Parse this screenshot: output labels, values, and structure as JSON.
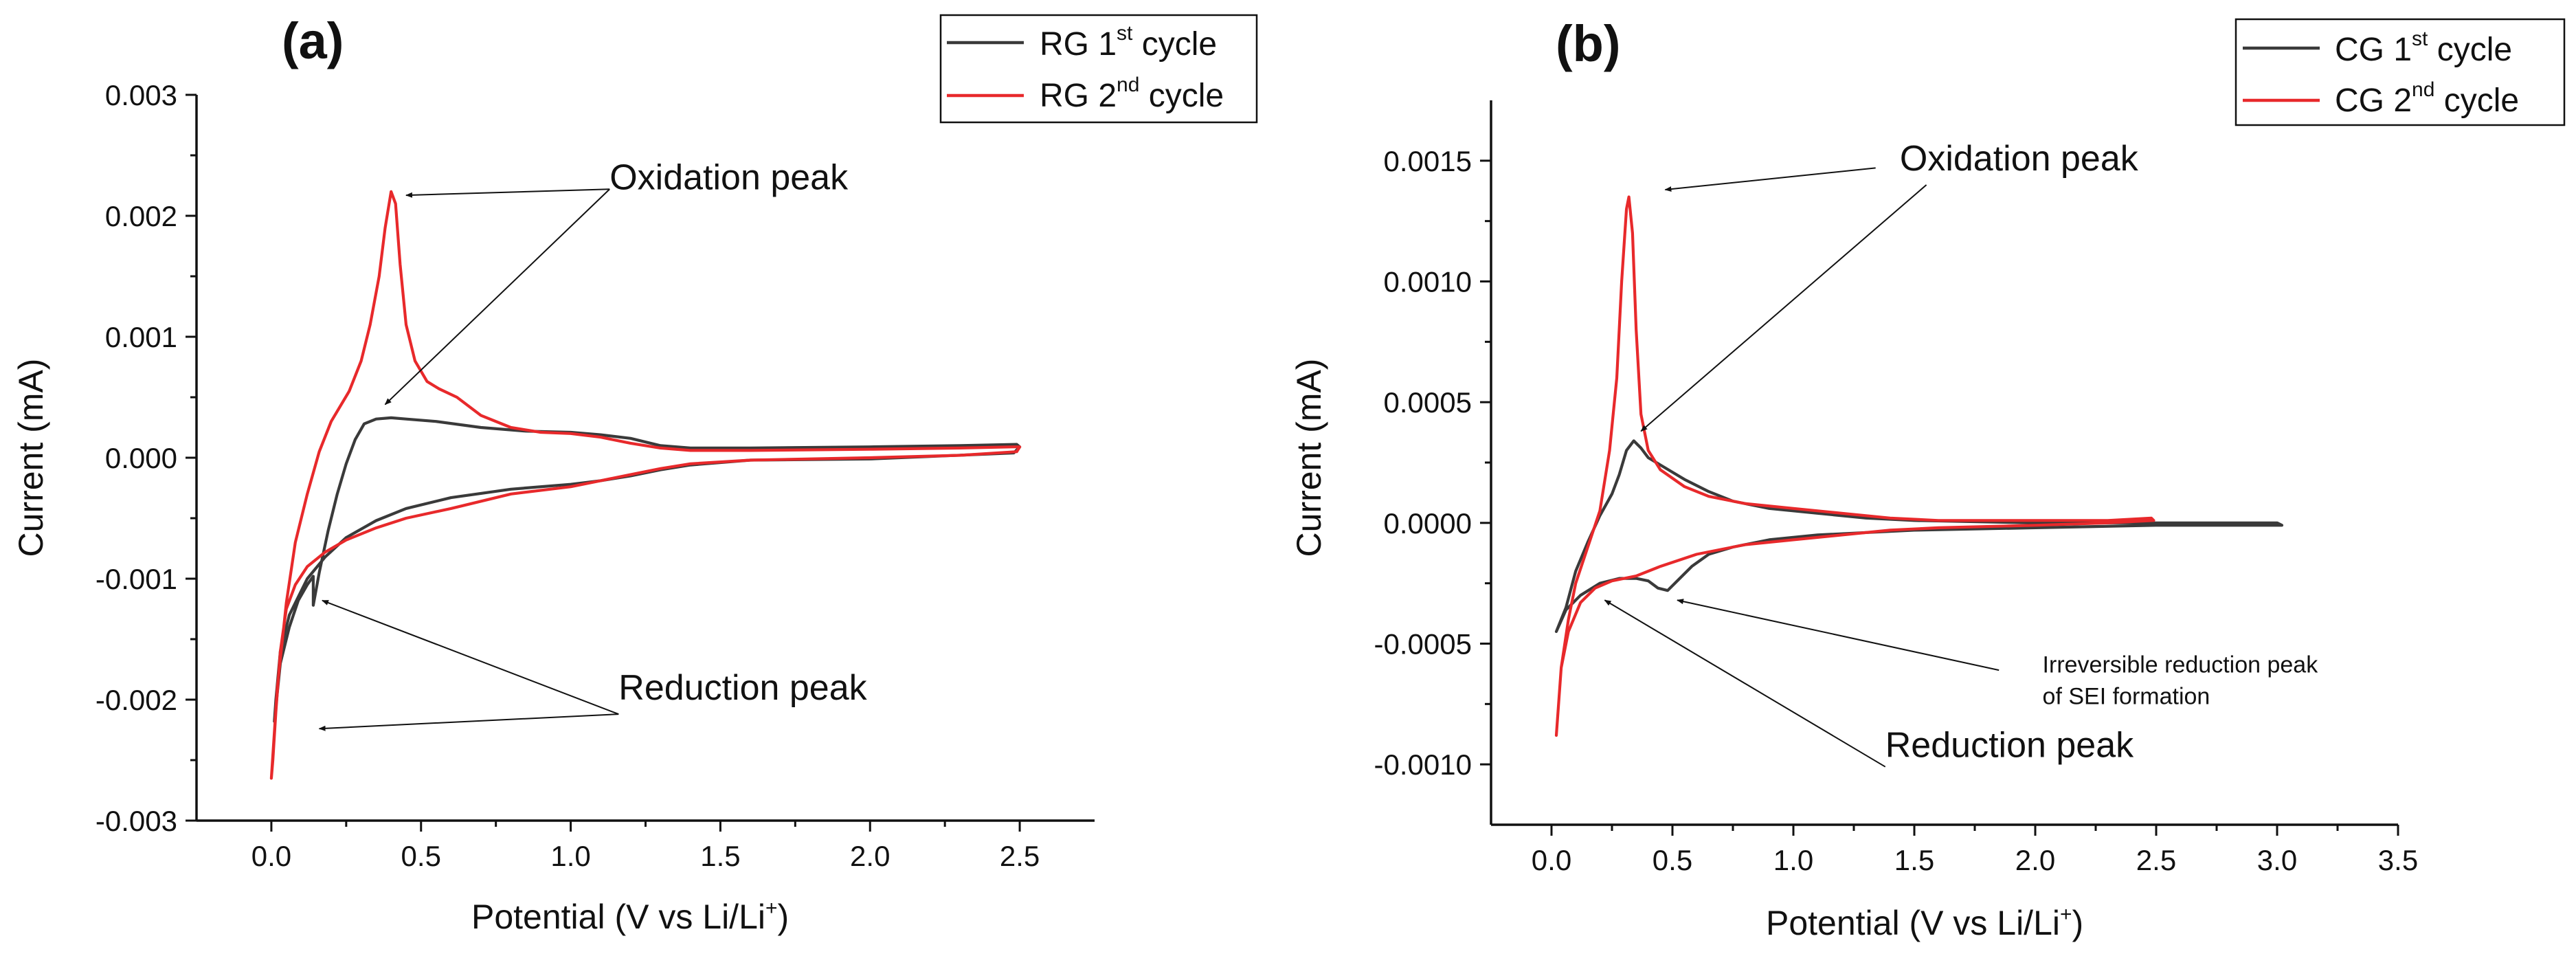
{
  "chart_data": [
    {
      "type": "line",
      "panel_label": "(a)",
      "xlabel": "Potential (V vs Li/Li",
      "xlabel_sup": "+",
      "xlabel_end": ")",
      "ylabel": "Current (mA)",
      "xlim": [
        -0.25,
        2.75
      ],
      "ylim": [
        -0.003,
        0.003
      ],
      "x_ticks": [
        0.0,
        0.5,
        1.0,
        1.5,
        2.0,
        2.5
      ],
      "x_tick_labels": [
        "0.0",
        "0.5",
        "1.0",
        "1.5",
        "2.0",
        "2.5"
      ],
      "y_ticks": [
        -0.003,
        -0.002,
        -0.001,
        0.0,
        0.001,
        0.002,
        0.003
      ],
      "y_tick_labels": [
        "-0.003",
        "-0.002",
        "-0.001",
        "0.000",
        "0.001",
        "0.002",
        "0.003"
      ],
      "legend_position": "top-right",
      "series": [
        {
          "name": "RG 1st cycle",
          "legend_base": "RG 1",
          "legend_sup": "st",
          "legend_end": " cycle",
          "color": "#3a3a3a",
          "points": [
            [
              0.14,
              -0.00122
            ],
            [
              0.16,
              -0.00095
            ],
            [
              0.19,
              -0.0006
            ],
            [
              0.22,
              -0.0003
            ],
            [
              0.25,
              -5e-05
            ],
            [
              0.28,
              0.00015
            ],
            [
              0.31,
              0.00028
            ],
            [
              0.35,
              0.00032
            ],
            [
              0.4,
              0.00033
            ],
            [
              0.45,
              0.00032
            ],
            [
              0.55,
              0.0003
            ],
            [
              0.7,
              0.00025
            ],
            [
              0.85,
              0.00022
            ],
            [
              1.0,
              0.00021
            ],
            [
              1.1,
              0.00019
            ],
            [
              1.2,
              0.00016
            ],
            [
              1.3,
              0.0001
            ],
            [
              1.4,
              8e-05
            ],
            [
              1.6,
              8e-05
            ],
            [
              2.0,
              9e-05
            ],
            [
              2.3,
              0.0001
            ],
            [
              2.49,
              0.00011
            ],
            [
              2.5,
              9e-05
            ],
            [
              2.48,
              4e-05
            ],
            [
              2.2,
              1e-05
            ],
            [
              2.0,
              -1e-05
            ],
            [
              1.6,
              -2e-05
            ],
            [
              1.4,
              -6e-05
            ],
            [
              1.3,
              -0.0001
            ],
            [
              1.2,
              -0.00015
            ],
            [
              1.1,
              -0.00019
            ],
            [
              1.0,
              -0.00022
            ],
            [
              0.8,
              -0.00026
            ],
            [
              0.6,
              -0.00033
            ],
            [
              0.45,
              -0.00042
            ],
            [
              0.35,
              -0.00052
            ],
            [
              0.25,
              -0.00066
            ],
            [
              0.18,
              -0.00082
            ],
            [
              0.12,
              -0.001
            ],
            [
              0.06,
              -0.0013
            ],
            [
              0.03,
              -0.0016
            ],
            [
              0.015,
              -0.002
            ],
            [
              0.01,
              -0.00218
            ],
            [
              0.03,
              -0.0017
            ],
            [
              0.06,
              -0.0014
            ],
            [
              0.09,
              -0.00118
            ],
            [
              0.12,
              -0.00105
            ],
            [
              0.14,
              -0.00098
            ]
          ]
        },
        {
          "name": "RG 2nd cycle",
          "legend_base": "RG 2",
          "legend_sup": "nd",
          "legend_end": " cycle",
          "color": "#e8292b",
          "points": [
            [
              0.0,
              -0.00265
            ],
            [
              0.02,
              -0.0019
            ],
            [
              0.05,
              -0.0012
            ],
            [
              0.08,
              -0.0007
            ],
            [
              0.12,
              -0.0003
            ],
            [
              0.16,
              5e-05
            ],
            [
              0.2,
              0.0003
            ],
            [
              0.26,
              0.00055
            ],
            [
              0.3,
              0.0008
            ],
            [
              0.33,
              0.0011
            ],
            [
              0.36,
              0.0015
            ],
            [
              0.38,
              0.0019
            ],
            [
              0.4,
              0.0022
            ],
            [
              0.415,
              0.0021
            ],
            [
              0.43,
              0.0016
            ],
            [
              0.45,
              0.0011
            ],
            [
              0.48,
              0.0008
            ],
            [
              0.52,
              0.00063
            ],
            [
              0.56,
              0.00057
            ],
            [
              0.62,
              0.0005
            ],
            [
              0.7,
              0.00035
            ],
            [
              0.8,
              0.00025
            ],
            [
              0.9,
              0.00021
            ],
            [
              1.0,
              0.0002
            ],
            [
              1.1,
              0.00017
            ],
            [
              1.2,
              0.00012
            ],
            [
              1.3,
              8e-05
            ],
            [
              1.4,
              6e-05
            ],
            [
              1.6,
              6e-05
            ],
            [
              2.0,
              7e-05
            ],
            [
              2.3,
              8e-05
            ],
            [
              2.48,
              9e-05
            ],
            [
              2.5,
              9e-05
            ],
            [
              2.49,
              5e-05
            ],
            [
              2.3,
              2e-05
            ],
            [
              2.0,
              0.0
            ],
            [
              1.6,
              -2e-05
            ],
            [
              1.4,
              -5e-05
            ],
            [
              1.3,
              -9e-05
            ],
            [
              1.2,
              -0.00014
            ],
            [
              1.1,
              -0.00019
            ],
            [
              1.0,
              -0.00024
            ],
            [
              0.8,
              -0.0003
            ],
            [
              0.6,
              -0.00042
            ],
            [
              0.45,
              -0.0005
            ],
            [
              0.35,
              -0.00058
            ],
            [
              0.25,
              -0.00068
            ],
            [
              0.18,
              -0.00078
            ],
            [
              0.12,
              -0.0009
            ],
            [
              0.08,
              -0.00105
            ],
            [
              0.05,
              -0.00125
            ],
            [
              0.03,
              -0.0016
            ],
            [
              0.015,
              -0.0021
            ],
            [
              0.005,
              -0.0025
            ],
            [
              0.0,
              -0.00265
            ]
          ]
        }
      ],
      "annotations": [
        {
          "label": "Oxidation peak",
          "size": "big",
          "text_at": [
            1.13,
            0.00222
          ],
          "arrows": [
            {
              "from": [
                1.13,
                0.00222
              ],
              "to": [
                0.45,
                0.00217
              ]
            },
            {
              "from": [
                1.13,
                0.00222
              ],
              "to": [
                0.38,
                0.00044
              ]
            }
          ]
        },
        {
          "label": "Reduction peak",
          "size": "big",
          "text_at": [
            1.16,
            -0.002
          ],
          "arrows": [
            {
              "from": [
                1.16,
                -0.00212
              ],
              "to": [
                0.17,
                -0.00118
              ]
            },
            {
              "from": [
                1.16,
                -0.00212
              ],
              "to": [
                0.16,
                -0.00224
              ]
            }
          ]
        }
      ]
    },
    {
      "type": "line",
      "panel_label": "(b)",
      "xlabel": "Potential (V vs Li/Li",
      "xlabel_sup": "+",
      "xlabel_end": ")",
      "ylabel": "Current (mA)",
      "xlim": [
        -0.25,
        3.5
      ],
      "ylim": [
        -0.00125,
        0.00175
      ],
      "x_ticks": [
        0.0,
        0.5,
        1.0,
        1.5,
        2.0,
        2.5,
        3.0,
        3.5
      ],
      "x_tick_labels": [
        "0.0",
        "0.5",
        "1.0",
        "1.5",
        "2.0",
        "2.5",
        "3.0",
        "3.5"
      ],
      "y_ticks": [
        -0.001,
        -0.0005,
        0.0,
        0.0005,
        0.001,
        0.0015
      ],
      "y_tick_labels": [
        "-0.0010",
        "-0.0005",
        "0.0000",
        "0.0005",
        "0.0010",
        "0.0015"
      ],
      "legend_position": "top-right",
      "series": [
        {
          "name": "CG 1st cycle",
          "legend_base": "CG 1",
          "legend_sup": "st",
          "legend_end": " cycle",
          "color": "#3a3a3a",
          "points": [
            [
              0.02,
              -0.00045
            ],
            [
              0.06,
              -0.00035
            ],
            [
              0.1,
              -0.0002
            ],
            [
              0.15,
              -8e-05
            ],
            [
              0.2,
              3e-05
            ],
            [
              0.25,
              0.00012
            ],
            [
              0.28,
              0.0002
            ],
            [
              0.31,
              0.0003
            ],
            [
              0.34,
              0.00034
            ],
            [
              0.37,
              0.00031
            ],
            [
              0.4,
              0.00027
            ],
            [
              0.45,
              0.00024
            ],
            [
              0.55,
              0.00018
            ],
            [
              0.65,
              0.00013
            ],
            [
              0.75,
              9e-05
            ],
            [
              0.9,
              6e-05
            ],
            [
              1.1,
              4e-05
            ],
            [
              1.3,
              2e-05
            ],
            [
              1.5,
              1e-05
            ],
            [
              2.0,
              0.0
            ],
            [
              2.5,
              0.0
            ],
            [
              3.0,
              0.0
            ],
            [
              3.02,
              -1e-05
            ],
            [
              2.5,
              -1e-05
            ],
            [
              2.0,
              -2e-05
            ],
            [
              1.5,
              -3e-05
            ],
            [
              1.1,
              -5e-05
            ],
            [
              0.9,
              -7e-05
            ],
            [
              0.75,
              -0.0001
            ],
            [
              0.65,
              -0.00013
            ],
            [
              0.58,
              -0.00018
            ],
            [
              0.53,
              -0.00023
            ],
            [
              0.48,
              -0.00028
            ],
            [
              0.44,
              -0.00027
            ],
            [
              0.4,
              -0.00024
            ],
            [
              0.35,
              -0.00023
            ],
            [
              0.28,
              -0.00023
            ],
            [
              0.2,
              -0.00025
            ],
            [
              0.12,
              -0.0003
            ],
            [
              0.06,
              -0.00036
            ],
            [
              0.02,
              -0.00045
            ]
          ]
        },
        {
          "name": "CG 2nd cycle",
          "legend_base": "CG 2",
          "legend_sup": "nd",
          "legend_end": " cycle",
          "color": "#e8292b",
          "points": [
            [
              0.02,
              -0.00088
            ],
            [
              0.04,
              -0.0006
            ],
            [
              0.07,
              -0.0004
            ],
            [
              0.1,
              -0.00025
            ],
            [
              0.15,
              -0.0001
            ],
            [
              0.2,
              5e-05
            ],
            [
              0.24,
              0.0003
            ],
            [
              0.27,
              0.0006
            ],
            [
              0.29,
              0.001
            ],
            [
              0.31,
              0.0013
            ],
            [
              0.32,
              0.00135
            ],
            [
              0.335,
              0.0012
            ],
            [
              0.35,
              0.0008
            ],
            [
              0.37,
              0.00045
            ],
            [
              0.4,
              0.0003
            ],
            [
              0.45,
              0.00022
            ],
            [
              0.55,
              0.00015
            ],
            [
              0.65,
              0.00011
            ],
            [
              0.8,
              8e-05
            ],
            [
              1.0,
              6e-05
            ],
            [
              1.2,
              4e-05
            ],
            [
              1.4,
              2e-05
            ],
            [
              1.6,
              1e-05
            ],
            [
              2.0,
              1e-05
            ],
            [
              2.3,
              1e-05
            ],
            [
              2.48,
              2e-05
            ],
            [
              2.49,
              1e-05
            ],
            [
              2.3,
              0.0
            ],
            [
              2.0,
              -1e-05
            ],
            [
              1.6,
              -2e-05
            ],
            [
              1.4,
              -3e-05
            ],
            [
              1.2,
              -5e-05
            ],
            [
              1.0,
              -7e-05
            ],
            [
              0.8,
              -9e-05
            ],
            [
              0.6,
              -0.00013
            ],
            [
              0.45,
              -0.00018
            ],
            [
              0.35,
              -0.00022
            ],
            [
              0.25,
              -0.00024
            ],
            [
              0.18,
              -0.00027
            ],
            [
              0.12,
              -0.00033
            ],
            [
              0.07,
              -0.00045
            ],
            [
              0.04,
              -0.0006
            ],
            [
              0.02,
              -0.00088
            ]
          ]
        }
      ],
      "annotations": [
        {
          "label": "Oxidation peak",
          "size": "big",
          "text_at": [
            1.44,
            0.00146
          ],
          "arrows": [
            {
              "from": [
                1.34,
                0.00147
              ],
              "to": [
                0.47,
                0.00138
              ]
            },
            {
              "from": [
                1.55,
                0.0014
              ],
              "to": [
                0.37,
                0.00038
              ]
            }
          ]
        },
        {
          "label": "Reduction peak",
          "size": "big",
          "text_at": [
            1.38,
            -0.00097
          ],
          "arrows": [
            {
              "from": [
                1.38,
                -0.00101
              ],
              "to": [
                0.22,
                -0.00032
              ]
            }
          ]
        },
        {
          "label": "Irreversible reduction peak",
          "label2": "of SEI formation",
          "size": "small",
          "text_at": [
            2.03,
            -0.00062
          ],
          "arrows": [
            {
              "from": [
                1.85,
                -0.00061
              ],
              "to": [
                0.52,
                -0.00032
              ]
            }
          ]
        }
      ]
    }
  ]
}
